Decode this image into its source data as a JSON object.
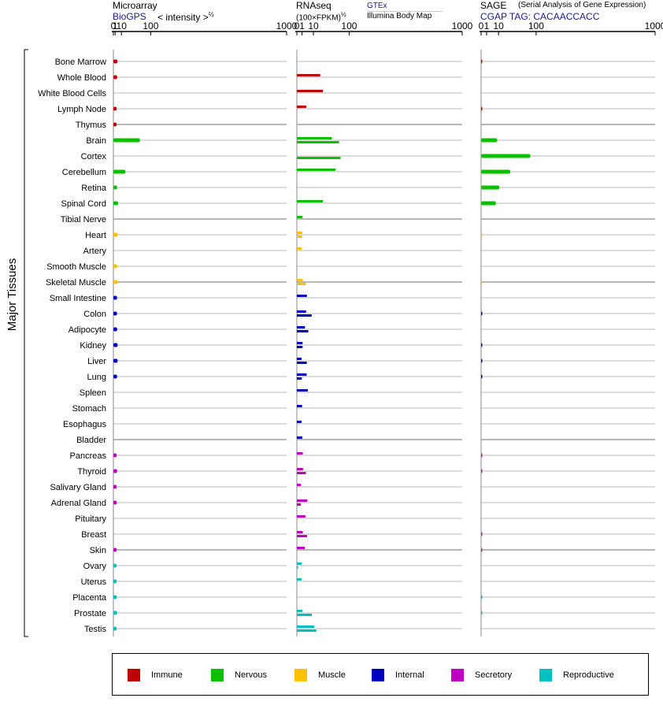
{
  "side_label": "Major Tissues",
  "panels": {
    "microarray": {
      "title": "Microarray",
      "source": "BioGPS",
      "measure": "< intensity >",
      "measure_exp": "⅔"
    },
    "rnaseq": {
      "title": "RNAseq",
      "measure": "(100×FPKM)",
      "measure_exp": "½",
      "source_primary": "GTEx",
      "source_secondary": "Illumina Body Map"
    },
    "sage": {
      "title": "SAGE",
      "subtitle": "(Serial Analysis of Gene Expression)",
      "source": "CGAP TAG: CACAACCACC"
    }
  },
  "legend": [
    {
      "label": "Immune",
      "color": "#c00000"
    },
    {
      "label": "Nervous",
      "color": "#0cc000"
    },
    {
      "label": "Muscle",
      "color": "#ffc000"
    },
    {
      "label": "Internal",
      "color": "#0000c0"
    },
    {
      "label": "Secretory",
      "color": "#c000c0"
    },
    {
      "label": "Reproductive",
      "color": "#00c0c0"
    }
  ],
  "chart_data": {
    "type": "bar",
    "orientation": "horizontal",
    "x_scale": "power",
    "x_ticks": [
      "0",
      "1",
      "10",
      "100",
      "1000"
    ],
    "xlim": [
      0,
      1000
    ],
    "categories": [
      "Bone Marrow",
      "Whole Blood",
      "White Blood Cells",
      "Lymph Node",
      "Thymus",
      "Brain",
      "Cortex",
      "Cerebellum",
      "Retina",
      "Spinal Cord",
      "Tibial Nerve",
      "Heart",
      "Artery",
      "Smooth Muscle",
      "Skeletal Muscle",
      "Small Intestine",
      "Colon",
      "Adipocyte",
      "Kidney",
      "Liver",
      "Lung",
      "Spleen",
      "Stomach",
      "Esophagus",
      "Bladder",
      "Pancreas",
      "Thyroid",
      "Salivary Gland",
      "Adrenal Gland",
      "Pituitary",
      "Breast",
      "Skin",
      "Ovary",
      "Uterus",
      "Placenta",
      "Prostate",
      "Testis"
    ],
    "category_group": [
      "Immune",
      "Immune",
      "Immune",
      "Immune",
      "Immune",
      "Nervous",
      "Nervous",
      "Nervous",
      "Nervous",
      "Nervous",
      "Nervous",
      "Muscle",
      "Muscle",
      "Muscle",
      "Muscle",
      "Internal",
      "Internal",
      "Internal",
      "Internal",
      "Internal",
      "Internal",
      "Internal",
      "Internal",
      "Internal",
      "Internal",
      "Secretory",
      "Secretory",
      "Secretory",
      "Secretory",
      "Secretory",
      "Secretory",
      "Secretory",
      "Reproductive",
      "Reproductive",
      "Reproductive",
      "Reproductive",
      "Reproductive"
    ],
    "series": [
      {
        "name": "Microarray",
        "values": [
          3.5,
          3.2,
          null,
          2.6,
          2.5,
          60,
          null,
          18,
          3.2,
          4.5,
          null,
          3.8,
          null,
          3.2,
          3.6,
          3.0,
          3.0,
          3.2,
          3.8,
          3.8,
          3.1,
          null,
          null,
          null,
          null,
          2.6,
          3.2,
          2.6,
          2.7,
          null,
          null,
          2.6,
          2.4,
          2.6,
          2.8,
          3.1,
          2.6
        ]
      },
      {
        "name": "GTEx",
        "values": [
          null,
          20,
          25,
          3.2,
          null,
          45,
          null,
          55,
          null,
          25,
          1.2,
          1.1,
          0.85,
          null,
          1.3,
          3.7,
          3.1,
          2.4,
          1.2,
          0.8,
          3.5,
          4.4,
          1.0,
          0.8,
          1.1,
          1.3,
          1.4,
          0.6,
          4.0,
          2.7,
          1.3,
          2.3,
          0.8,
          0.8,
          null,
          1.2,
          11
        ]
      },
      {
        "name": "Illumina Body Map",
        "values": [
          null,
          null,
          null,
          null,
          null,
          65,
          70,
          null,
          null,
          null,
          null,
          1.0,
          null,
          null,
          3.0,
          null,
          8.0,
          4.8,
          1.2,
          3.6,
          0.9,
          null,
          null,
          null,
          null,
          null,
          3.0,
          null,
          0.6,
          null,
          3.8,
          null,
          0.02,
          null,
          null,
          8.2,
          14
        ]
      },
      {
        "name": "SAGE",
        "values": [
          0.01,
          null,
          null,
          0.01,
          null,
          8.5,
          80,
          28,
          11,
          7.2,
          null,
          0.005,
          null,
          null,
          0.005,
          null,
          0.01,
          null,
          0.01,
          0.01,
          0.01,
          null,
          null,
          null,
          null,
          0.01,
          0.01,
          null,
          null,
          null,
          0.01,
          0.01,
          null,
          null,
          0.005,
          0.005,
          null
        ]
      }
    ]
  }
}
